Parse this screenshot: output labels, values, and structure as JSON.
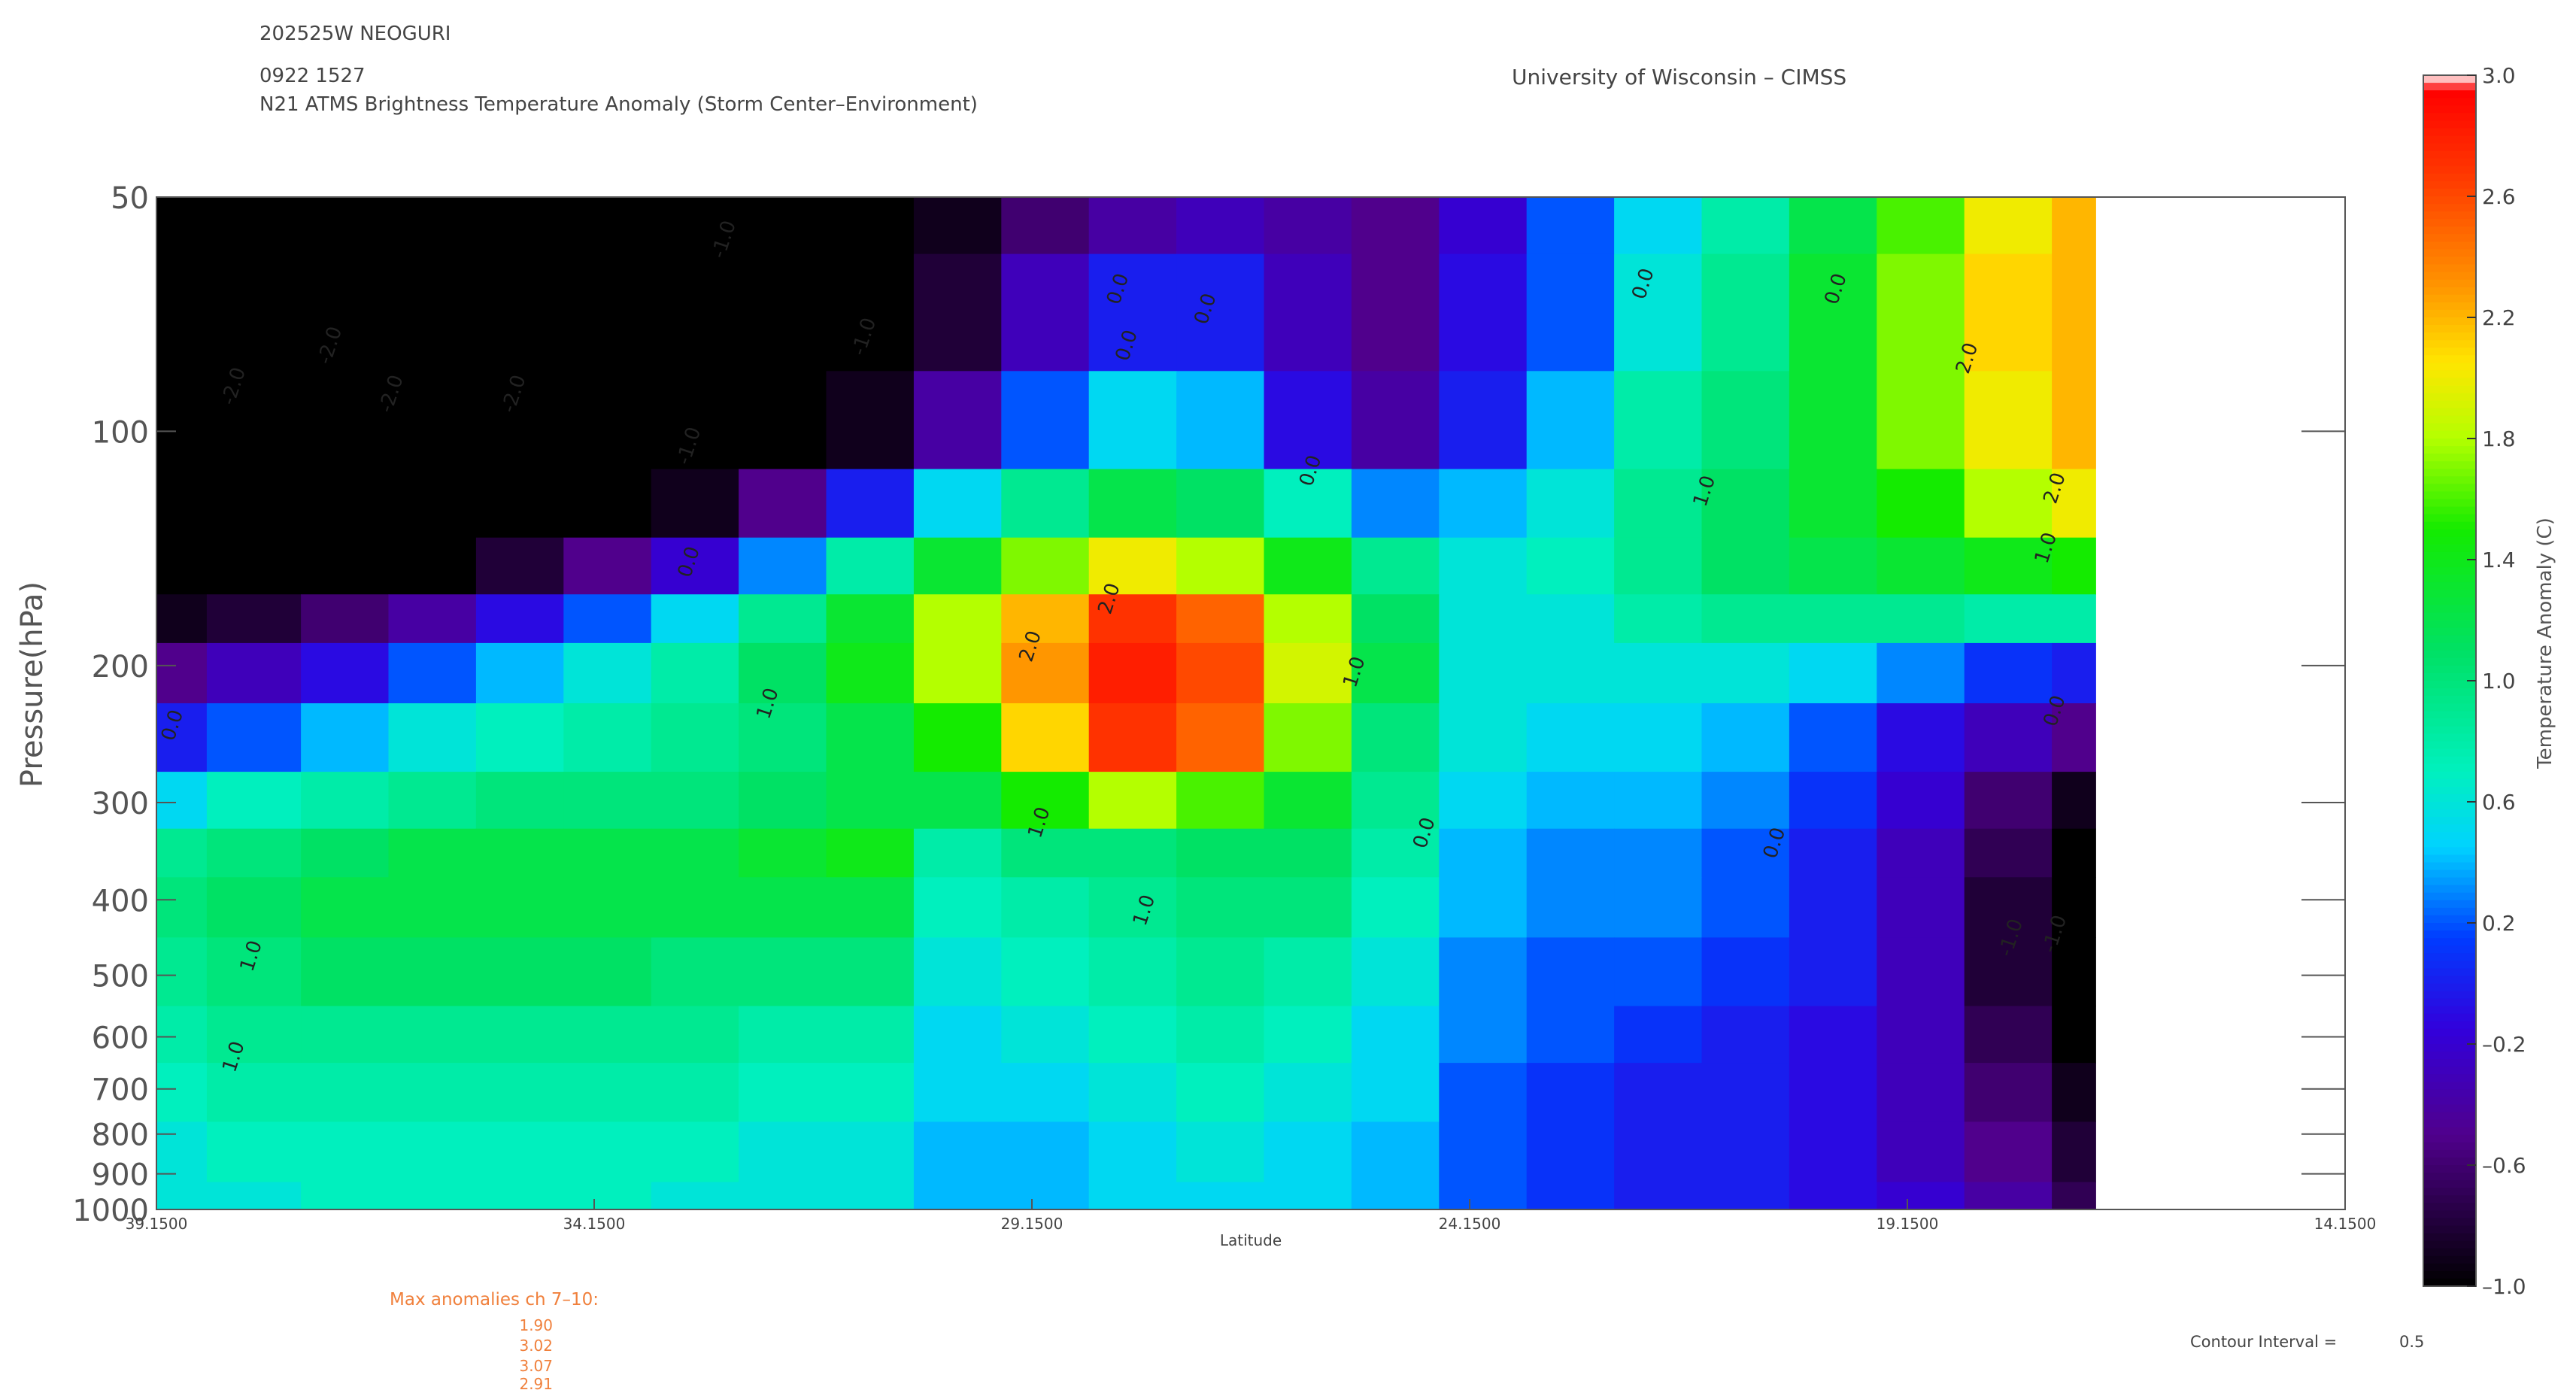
{
  "header": {
    "storm_id": "202525W NEOGURI",
    "datetime": "0922 1527",
    "product": "N21 ATMS Brightness Temperature Anomaly (Storm Center–Environment)",
    "institution": "University of Wisconsin – CIMSS"
  },
  "footer": {
    "max_label": "Max anomalies ch 7–10:",
    "max_values": [
      "1.90",
      "3.02",
      "3.07",
      "2.91"
    ],
    "contour_label": "Contour Interval =",
    "contour_value": "0.5"
  },
  "chart_data": {
    "type": "heatmap",
    "xlabel": "Latitude",
    "ylabel": "Pressure(hPa)",
    "xlim": [
      39.15,
      14.15
    ],
    "x_ticks": [
      "39.1500",
      "34.1500",
      "29.1500",
      "24.1500",
      "19.1500",
      "14.1500"
    ],
    "y_scale": "log",
    "ylim": [
      1000,
      50
    ],
    "y_ticks": [
      "50",
      "100",
      "200",
      "300",
      "400",
      "500",
      "600",
      "700",
      "800",
      "900",
      "1000"
    ],
    "data_extent_lat": [
      39.15,
      17.0
    ],
    "lat": [
      39.15,
      38.0,
      37.0,
      36.0,
      35.0,
      34.0,
      33.0,
      32.0,
      31.0,
      30.0,
      29.0,
      28.0,
      27.0,
      26.0,
      25.0,
      24.0,
      23.0,
      22.0,
      21.0,
      20.0,
      19.0,
      18.0,
      17.0
    ],
    "pressure": [
      50,
      70,
      100,
      125,
      150,
      175,
      200,
      250,
      300,
      350,
      400,
      500,
      600,
      700,
      850,
      1000
    ],
    "values": [
      [
        -3.0,
        -2.6,
        -2.4,
        -2.2,
        -2.0,
        -1.8,
        -1.6,
        -1.4,
        -1.2,
        -0.9,
        -0.6,
        -0.4,
        -0.3,
        -0.4,
        -0.5,
        -0.2,
        0.2,
        0.5,
        0.8,
        1.2,
        1.6,
        2.0,
        2.2
      ],
      [
        -2.9,
        -2.7,
        -2.5,
        -2.3,
        -2.1,
        -1.9,
        -1.7,
        -1.4,
        -1.1,
        -0.8,
        -0.3,
        0.0,
        0.0,
        -0.3,
        -0.5,
        -0.1,
        0.2,
        0.6,
        0.9,
        1.3,
        1.7,
        2.1,
        2.2
      ],
      [
        -3.0,
        -2.9,
        -2.7,
        -2.5,
        -2.3,
        -2.1,
        -1.7,
        -1.3,
        -0.9,
        -0.4,
        0.2,
        0.5,
        0.4,
        -0.1,
        -0.4,
        0.0,
        0.4,
        0.8,
        1.0,
        1.3,
        1.7,
        2.0,
        2.2
      ],
      [
        -2.4,
        -2.3,
        -2.1,
        -1.9,
        -1.6,
        -1.3,
        -0.9,
        -0.5,
        0.0,
        0.5,
        0.9,
        1.2,
        1.1,
        0.7,
        0.3,
        0.4,
        0.6,
        0.9,
        1.1,
        1.3,
        1.5,
        1.8,
        2.0
      ],
      [
        -1.6,
        -1.4,
        -1.2,
        -1.0,
        -0.8,
        -0.5,
        -0.2,
        0.3,
        0.8,
        1.3,
        1.7,
        2.0,
        1.8,
        1.4,
        0.9,
        0.6,
        0.7,
        0.9,
        1.1,
        1.2,
        1.3,
        1.4,
        1.5
      ],
      [
        -0.9,
        -0.8,
        -0.6,
        -0.4,
        -0.1,
        0.2,
        0.5,
        0.9,
        1.3,
        1.8,
        2.2,
        2.7,
        2.5,
        1.8,
        1.1,
        0.6,
        0.6,
        0.8,
        0.9,
        0.9,
        0.9,
        0.8,
        0.8
      ],
      [
        -0.5,
        -0.3,
        -0.1,
        0.2,
        0.4,
        0.6,
        0.8,
        1.1,
        1.4,
        1.8,
        2.3,
        2.8,
        2.6,
        1.9,
        1.2,
        0.6,
        0.6,
        0.6,
        0.6,
        0.5,
        0.3,
        0.1,
        0.0
      ],
      [
        0.0,
        0.2,
        0.4,
        0.6,
        0.7,
        0.8,
        0.9,
        1.0,
        1.2,
        1.5,
        2.1,
        2.7,
        2.5,
        1.7,
        1.0,
        0.6,
        0.5,
        0.5,
        0.4,
        0.2,
        -0.1,
        -0.3,
        -0.5
      ],
      [
        0.5,
        0.7,
        0.8,
        0.9,
        1.0,
        1.0,
        1.0,
        1.1,
        1.2,
        1.2,
        1.5,
        1.8,
        1.6,
        1.3,
        0.9,
        0.5,
        0.4,
        0.4,
        0.3,
        0.1,
        -0.2,
        -0.6,
        -0.9
      ],
      [
        0.9,
        1.0,
        1.1,
        1.2,
        1.2,
        1.2,
        1.2,
        1.3,
        1.4,
        0.8,
        1.0,
        1.0,
        1.1,
        1.1,
        0.8,
        0.4,
        0.3,
        0.3,
        0.2,
        0.0,
        -0.3,
        -0.7,
        -1.1
      ],
      [
        1.0,
        1.1,
        1.2,
        1.2,
        1.2,
        1.2,
        1.2,
        1.2,
        1.2,
        0.7,
        0.8,
        0.9,
        1.0,
        1.0,
        0.7,
        0.4,
        0.3,
        0.3,
        0.2,
        0.0,
        -0.3,
        -0.8,
        -1.2
      ],
      [
        0.9,
        1.0,
        1.1,
        1.1,
        1.1,
        1.1,
        1.0,
        1.0,
        1.0,
        0.6,
        0.7,
        0.8,
        0.9,
        0.8,
        0.6,
        0.3,
        0.2,
        0.2,
        0.1,
        0.0,
        -0.3,
        -0.8,
        -1.2
      ],
      [
        0.8,
        0.9,
        0.9,
        0.9,
        0.9,
        0.9,
        0.9,
        0.8,
        0.8,
        0.5,
        0.6,
        0.7,
        0.8,
        0.7,
        0.5,
        0.3,
        0.2,
        0.1,
        0.0,
        -0.1,
        -0.3,
        -0.7,
        -1.0
      ],
      [
        0.7,
        0.8,
        0.8,
        0.8,
        0.8,
        0.8,
        0.8,
        0.7,
        0.7,
        0.5,
        0.5,
        0.6,
        0.7,
        0.6,
        0.5,
        0.2,
        0.1,
        0.0,
        0.0,
        -0.1,
        -0.3,
        -0.6,
        -0.9
      ],
      [
        0.6,
        0.7,
        0.7,
        0.7,
        0.7,
        0.7,
        0.7,
        0.6,
        0.6,
        0.4,
        0.4,
        0.5,
        0.6,
        0.5,
        0.4,
        0.2,
        0.1,
        0.0,
        0.0,
        -0.1,
        -0.3,
        -0.5,
        -0.8
      ],
      [
        0.6,
        0.6,
        0.7,
        0.7,
        0.7,
        0.7,
        0.6,
        0.6,
        0.6,
        0.4,
        0.4,
        0.5,
        0.5,
        0.5,
        0.4,
        0.2,
        0.1,
        0.0,
        0.0,
        -0.1,
        -0.2,
        -0.4,
        -0.7
      ]
    ],
    "contour_labels": [
      {
        "text": "-2.0",
        "lat": 37.1,
        "p": 78
      },
      {
        "text": "-2.0",
        "lat": 38.2,
        "p": 88
      },
      {
        "text": "-2.0",
        "lat": 36.4,
        "p": 90
      },
      {
        "text": "-2.0",
        "lat": 35.0,
        "p": 90
      },
      {
        "text": "-1.0",
        "lat": 32.6,
        "p": 57
      },
      {
        "text": "-1.0",
        "lat": 31.0,
        "p": 76
      },
      {
        "text": "-1.0",
        "lat": 33.0,
        "p": 105
      },
      {
        "text": "0.0",
        "lat": 33.0,
        "p": 148
      },
      {
        "text": "0.0",
        "lat": 38.9,
        "p": 240
      },
      {
        "text": "0.0",
        "lat": 28.1,
        "p": 66
      },
      {
        "text": "0.0",
        "lat": 27.1,
        "p": 70
      },
      {
        "text": "0.0",
        "lat": 28.0,
        "p": 78
      },
      {
        "text": "0.0",
        "lat": 25.9,
        "p": 113
      },
      {
        "text": "0.0",
        "lat": 22.1,
        "p": 65
      },
      {
        "text": "0.0",
        "lat": 24.6,
        "p": 330
      },
      {
        "text": "0.0",
        "lat": 20.6,
        "p": 340
      },
      {
        "text": "0.0",
        "lat": 19.9,
        "p": 66
      },
      {
        "text": "0.0",
        "lat": 17.4,
        "p": 230
      },
      {
        "text": "1.0",
        "lat": 32.1,
        "p": 225
      },
      {
        "text": "1.0",
        "lat": 38.0,
        "p": 475
      },
      {
        "text": "1.0",
        "lat": 38.2,
        "p": 640
      },
      {
        "text": "1.0",
        "lat": 29.0,
        "p": 320
      },
      {
        "text": "1.0",
        "lat": 27.8,
        "p": 415
      },
      {
        "text": "1.0",
        "lat": 25.4,
        "p": 205
      },
      {
        "text": "1.0",
        "lat": 21.4,
        "p": 120
      },
      {
        "text": "1.0",
        "lat": 17.5,
        "p": 142
      },
      {
        "text": "-1.0",
        "lat": 17.9,
        "p": 450
      },
      {
        "text": "-1.0",
        "lat": 17.4,
        "p": 445
      },
      {
        "text": "2.0",
        "lat": 29.1,
        "p": 190
      },
      {
        "text": "2.0",
        "lat": 28.2,
        "p": 165
      },
      {
        "text": "2.0",
        "lat": 18.4,
        "p": 81
      },
      {
        "text": "2.0",
        "lat": 17.4,
        "p": 119
      }
    ]
  },
  "colorbar": {
    "label": "Temperature Anomaly (C)",
    "min": -1.0,
    "max": 3.0,
    "ticks": [
      "3.0",
      "2.6",
      "2.2",
      "1.8",
      "1.4",
      "1.0",
      "0.6",
      "0.2",
      "–0.2",
      "–0.6",
      "–1.0"
    ],
    "tick_values": [
      3.0,
      2.6,
      2.2,
      1.8,
      1.4,
      1.0,
      0.6,
      0.2,
      -0.2,
      -0.6,
      -1.0
    ]
  }
}
